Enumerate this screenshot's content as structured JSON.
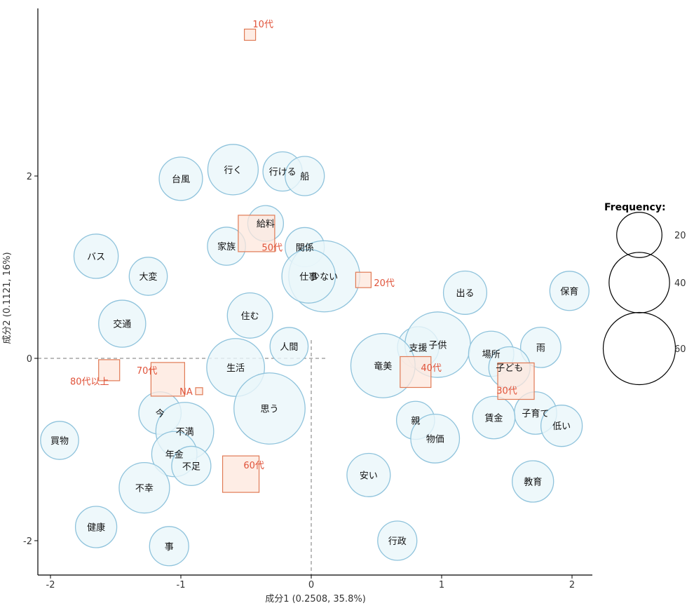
{
  "chart_data": {
    "type": "scatter",
    "xlabel": "成分1 (0.2508, 35.8%)",
    "ylabel": "成分2 (0.1121, 16%)",
    "xlim": [
      -2.1,
      2.1
    ],
    "ylim": [
      -2.35,
      3.85
    ],
    "x_ticks": [
      -2,
      -1,
      0,
      1,
      2
    ],
    "x_tick_labels": [
      "-2",
      "-1",
      "0",
      "1",
      "2"
    ],
    "y_ticks": [
      -2,
      0,
      2
    ],
    "y_tick_labels": [
      "-2",
      "0",
      "2"
    ],
    "zero_lines": true,
    "colors": {
      "word_fill": "#eaf6fa",
      "word_stroke": "#8fc3dc",
      "group_fill": "#fde7dc",
      "group_stroke": "#e07a55",
      "group_text": "#e0533a"
    },
    "legend": {
      "title": "Frequency:",
      "position": "right",
      "entries": [
        {
          "label": "20",
          "value": 20
        },
        {
          "label": "40",
          "value": 40
        },
        {
          "label": "60",
          "value": 60
        }
      ]
    },
    "words": [
      {
        "label": "行く",
        "x": -0.6,
        "y": 2.07,
        "freq": 26
      },
      {
        "label": "行ける",
        "x": -0.22,
        "y": 2.05,
        "freq": 14
      },
      {
        "label": "船",
        "x": -0.05,
        "y": 2.0,
        "freq": 14
      },
      {
        "label": "台風",
        "x": -1.0,
        "y": 1.97,
        "freq": 18
      },
      {
        "label": "給料",
        "x": -0.35,
        "y": 1.48,
        "freq": 11
      },
      {
        "label": "家族",
        "x": -0.65,
        "y": 1.23,
        "freq": 13
      },
      {
        "label": "関係",
        "x": -0.05,
        "y": 1.22,
        "freq": 14
      },
      {
        "label": "少ない",
        "x": 0.1,
        "y": 0.9,
        "freq": 58
      },
      {
        "label": "仕事",
        "x": -0.02,
        "y": 0.9,
        "freq": 30
      },
      {
        "label": "バス",
        "x": -1.65,
        "y": 1.12,
        "freq": 19
      },
      {
        "label": "大変",
        "x": -1.25,
        "y": 0.9,
        "freq": 13
      },
      {
        "label": "出る",
        "x": 1.18,
        "y": 0.72,
        "freq": 18
      },
      {
        "label": "保育",
        "x": 1.98,
        "y": 0.74,
        "freq": 14
      },
      {
        "label": "住む",
        "x": -0.47,
        "y": 0.47,
        "freq": 20
      },
      {
        "label": "交通",
        "x": -1.45,
        "y": 0.38,
        "freq": 22
      },
      {
        "label": "人間",
        "x": -0.17,
        "y": 0.13,
        "freq": 13
      },
      {
        "label": "支援",
        "x": 0.82,
        "y": 0.12,
        "freq": 16
      },
      {
        "label": "子供",
        "x": 0.97,
        "y": 0.15,
        "freq": 48
      },
      {
        "label": "場所",
        "x": 1.38,
        "y": 0.05,
        "freq": 20
      },
      {
        "label": "雨",
        "x": 1.76,
        "y": 0.12,
        "freq": 15
      },
      {
        "label": "子ども",
        "x": 1.52,
        "y": -0.1,
        "freq": 16
      },
      {
        "label": "竜美",
        "x": 0.55,
        "y": -0.08,
        "freq": 46
      },
      {
        "label": "生活",
        "x": -0.58,
        "y": -0.1,
        "freq": 36
      },
      {
        "label": "思う",
        "x": -0.32,
        "y": -0.55,
        "freq": 58
      },
      {
        "label": "子育て",
        "x": 1.72,
        "y": -0.6,
        "freq": 17
      },
      {
        "label": "賃金",
        "x": 1.4,
        "y": -0.65,
        "freq": 17
      },
      {
        "label": "親",
        "x": 0.8,
        "y": -0.68,
        "freq": 13
      },
      {
        "label": "低い",
        "x": 1.92,
        "y": -0.74,
        "freq": 16
      },
      {
        "label": "今",
        "x": -1.16,
        "y": -0.6,
        "freq": 17
      },
      {
        "label": "不満",
        "x": -0.97,
        "y": -0.8,
        "freq": 36
      },
      {
        "label": "物価",
        "x": 0.95,
        "y": -0.88,
        "freq": 24
      },
      {
        "label": "買物",
        "x": -1.93,
        "y": -0.9,
        "freq": 13
      },
      {
        "label": "年金",
        "x": -1.05,
        "y": -1.05,
        "freq": 20
      },
      {
        "label": "不足",
        "x": -0.92,
        "y": -1.18,
        "freq": 14
      },
      {
        "label": "安い",
        "x": 0.44,
        "y": -1.28,
        "freq": 18
      },
      {
        "label": "教育",
        "x": 1.7,
        "y": -1.35,
        "freq": 16
      },
      {
        "label": "不幸",
        "x": -1.28,
        "y": -1.42,
        "freq": 26
      },
      {
        "label": "健康",
        "x": -1.65,
        "y": -1.85,
        "freq": 16
      },
      {
        "label": "行政",
        "x": 0.66,
        "y": -2.0,
        "freq": 14
      },
      {
        "label": "事",
        "x": -1.09,
        "y": -2.06,
        "freq": 14
      }
    ],
    "groups": [
      {
        "label": "10代",
        "x": -0.47,
        "y": 3.55,
        "size": 8,
        "lx": 0.1,
        "ly": 0.12
      },
      {
        "label": "50代",
        "x": -0.42,
        "y": 1.37,
        "size": 26,
        "lx": 0.12,
        "ly": -0.15
      },
      {
        "label": "20代",
        "x": 0.4,
        "y": 0.86,
        "size": 11,
        "lx": 0.16,
        "ly": -0.03
      },
      {
        "label": "80代以上",
        "x": -1.55,
        "y": -0.13,
        "size": 15,
        "lx": -0.15,
        "ly": -0.12
      },
      {
        "label": "70代",
        "x": -1.1,
        "y": -0.23,
        "size": 24,
        "lx": -0.16,
        "ly": 0.1
      },
      {
        "label": "NA",
        "x": -0.86,
        "y": -0.36,
        "size": 5,
        "lx": -0.1,
        "ly": 0.0
      },
      {
        "label": "40代",
        "x": 0.8,
        "y": -0.15,
        "size": 22,
        "lx": 0.12,
        "ly": 0.05
      },
      {
        "label": "30代",
        "x": 1.57,
        "y": -0.25,
        "size": 26,
        "lx": -0.07,
        "ly": -0.1
      },
      {
        "label": "60代",
        "x": -0.54,
        "y": -1.27,
        "size": 26,
        "lx": 0.1,
        "ly": 0.1
      }
    ]
  }
}
